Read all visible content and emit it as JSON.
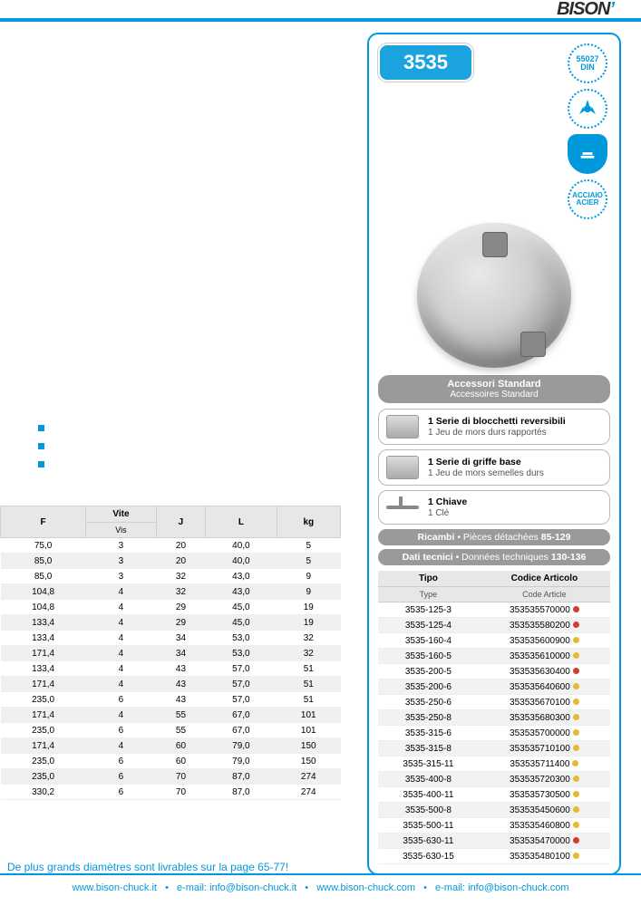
{
  "brand": "BISON",
  "model": "3535",
  "badges": {
    "din": "55027 DIN",
    "acciaio": "ACCIAIO ACIER"
  },
  "accessories": {
    "header_it": "Accessori Standard",
    "header_fr": "Accessoires Standard",
    "items": [
      {
        "title_it": "1 Serie di blocchetti reversibili",
        "title_fr": "1 Jeu de mors durs rapportés"
      },
      {
        "title_it": "1 Serie di griffe base",
        "title_fr": "1 Jeu de mors semelles durs"
      },
      {
        "title_it": "1 Chiave",
        "title_fr": "1 Clé"
      }
    ],
    "ricambi": {
      "label": "Ricambi",
      "fr": "Pièces détachées",
      "pages": "85-129"
    },
    "dati": {
      "label": "Dati tecnici",
      "fr": "Données techniques",
      "pages": "130-136"
    }
  },
  "tipo_table": {
    "headers": {
      "tipo": "Tipo",
      "tipo_fr": "Type",
      "codice": "Codice Articolo",
      "codice_fr": "Code Article"
    },
    "dot_colors": {
      "red": "#d43a2f",
      "yellow": "#e7b92f"
    },
    "rows": [
      {
        "tipo": "3535-125-3",
        "code": "353535570000",
        "dot": "red"
      },
      {
        "tipo": "3535-125-4",
        "code": "353535580200",
        "dot": "red"
      },
      {
        "tipo": "3535-160-4",
        "code": "353535600900",
        "dot": "yellow"
      },
      {
        "tipo": "3535-160-5",
        "code": "353535610000",
        "dot": "yellow"
      },
      {
        "tipo": "3535-200-5",
        "code": "353535630400",
        "dot": "red"
      },
      {
        "tipo": "3535-200-6",
        "code": "353535640600",
        "dot": "yellow"
      },
      {
        "tipo": "3535-250-6",
        "code": "353535670100",
        "dot": "yellow"
      },
      {
        "tipo": "3535-250-8",
        "code": "353535680300",
        "dot": "yellow"
      },
      {
        "tipo": "3535-315-6",
        "code": "353535700000",
        "dot": "yellow"
      },
      {
        "tipo": "3535-315-8",
        "code": "353535710100",
        "dot": "yellow"
      },
      {
        "tipo": "3535-315-11",
        "code": "353535711400",
        "dot": "yellow"
      },
      {
        "tipo": "3535-400-8",
        "code": "353535720300",
        "dot": "yellow"
      },
      {
        "tipo": "3535-400-11",
        "code": "353535730500",
        "dot": "yellow"
      },
      {
        "tipo": "3535-500-8",
        "code": "353535450600",
        "dot": "yellow"
      },
      {
        "tipo": "3535-500-11",
        "code": "353535460800",
        "dot": "yellow"
      },
      {
        "tipo": "3535-630-11",
        "code": "353535470000",
        "dot": "red"
      },
      {
        "tipo": "3535-630-15",
        "code": "353535480100",
        "dot": "yellow"
      }
    ]
  },
  "left_table": {
    "headers": {
      "F": "F",
      "vite": "Vite",
      "vis": "Vis",
      "J": "J",
      "L": "L",
      "kg": "kg"
    },
    "rows": [
      {
        "F": "75,0",
        "vite": "3",
        "J": "20",
        "L": "40,0",
        "kg": "5"
      },
      {
        "F": "85,0",
        "vite": "3",
        "J": "20",
        "L": "40,0",
        "kg": "5"
      },
      {
        "F": "85,0",
        "vite": "3",
        "J": "32",
        "L": "43,0",
        "kg": "9"
      },
      {
        "F": "104,8",
        "vite": "4",
        "J": "32",
        "L": "43,0",
        "kg": "9"
      },
      {
        "F": "104,8",
        "vite": "4",
        "J": "29",
        "L": "45,0",
        "kg": "19"
      },
      {
        "F": "133,4",
        "vite": "4",
        "J": "29",
        "L": "45,0",
        "kg": "19"
      },
      {
        "F": "133,4",
        "vite": "4",
        "J": "34",
        "L": "53,0",
        "kg": "32"
      },
      {
        "F": "171,4",
        "vite": "4",
        "J": "34",
        "L": "53,0",
        "kg": "32"
      },
      {
        "F": "133,4",
        "vite": "4",
        "J": "43",
        "L": "57,0",
        "kg": "51"
      },
      {
        "F": "171,4",
        "vite": "4",
        "J": "43",
        "L": "57,0",
        "kg": "51"
      },
      {
        "F": "235,0",
        "vite": "6",
        "J": "43",
        "L": "57,0",
        "kg": "51"
      },
      {
        "F": "171,4",
        "vite": "4",
        "J": "55",
        "L": "67,0",
        "kg": "101"
      },
      {
        "F": "235,0",
        "vite": "6",
        "J": "55",
        "L": "67,0",
        "kg": "101"
      },
      {
        "F": "171,4",
        "vite": "4",
        "J": "60",
        "L": "79,0",
        "kg": "150"
      },
      {
        "F": "235,0",
        "vite": "6",
        "J": "60",
        "L": "79,0",
        "kg": "150"
      },
      {
        "F": "235,0",
        "vite": "6",
        "J": "70",
        "L": "87,0",
        "kg": "274"
      },
      {
        "F": "330,2",
        "vite": "6",
        "J": "70",
        "L": "87,0",
        "kg": "274"
      }
    ]
  },
  "note": "De plus grands diamètres sont livrables sur la page 65-77!",
  "footer": {
    "site1": "www.bison-chuck.it",
    "mail1_label": "e-mail:",
    "mail1": "info@bison-chuck.it",
    "site2": "www.bison-chuck.com",
    "mail2_label": "e-mail:",
    "mail2": "info@bison-chuck.com"
  },
  "colors": {
    "primary": "#0099dd",
    "grey_pill": "#9a9a9a",
    "header_bg": "#e7e7e7",
    "row_alt": "#eef0f1"
  }
}
